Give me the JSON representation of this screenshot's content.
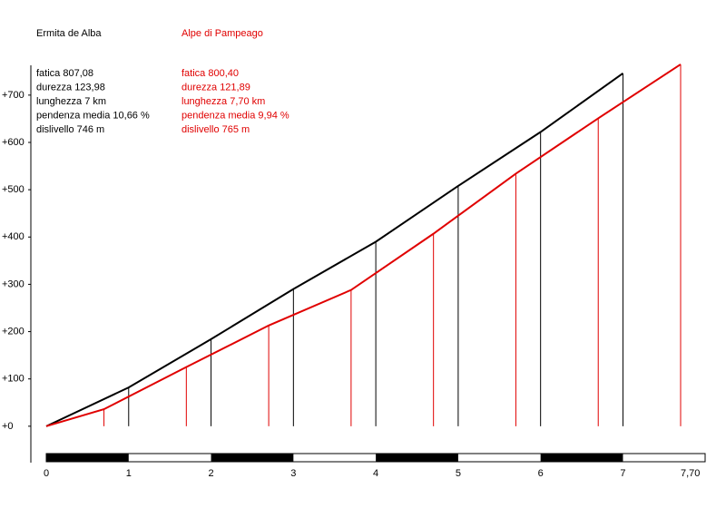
{
  "chart_data": {
    "type": "line",
    "series": [
      {
        "name": "Ermita de Alba",
        "color": "#000000",
        "x": [
          0,
          1,
          2,
          3,
          4,
          5,
          6,
          7
        ],
        "values": [
          0,
          82,
          184,
          290,
          390,
          508,
          622,
          746
        ],
        "stats": [
          "fatica 807,08",
          "durezza 123,98",
          "lunghezza 7 km",
          "pendenza media 10,66 %",
          "dislivello 746 m"
        ]
      },
      {
        "name": "Alpe di Pampeago",
        "color": "#e00000",
        "x": [
          0,
          0.7,
          1.7,
          2.7,
          3.7,
          4.7,
          5.7,
          6.7,
          7.7
        ],
        "values": [
          0,
          36,
          125,
          213,
          288,
          407,
          534,
          651,
          765
        ],
        "stats": [
          "fatica 800,40",
          "durezza 121,89",
          "lunghezza 7,70 km",
          "pendenza media 9,94 %",
          "dislivello 765 m"
        ]
      }
    ],
    "xlim": [
      0,
      7.7
    ],
    "xticks": [
      0,
      1,
      2,
      3,
      4,
      5,
      6,
      7,
      {
        "value": 7.7,
        "label": "7,70"
      }
    ],
    "ylim": [
      -77,
      763
    ],
    "yticks": [
      {
        "value": 0,
        "label": "+0"
      },
      {
        "value": 100,
        "label": "+100"
      },
      {
        "value": 200,
        "label": "+200"
      },
      {
        "value": 300,
        "label": "+300"
      },
      {
        "value": 400,
        "label": "+400"
      },
      {
        "value": 500,
        "label": "+500"
      },
      {
        "value": 600,
        "label": "+600"
      },
      {
        "value": 700,
        "label": "+700"
      }
    ]
  }
}
